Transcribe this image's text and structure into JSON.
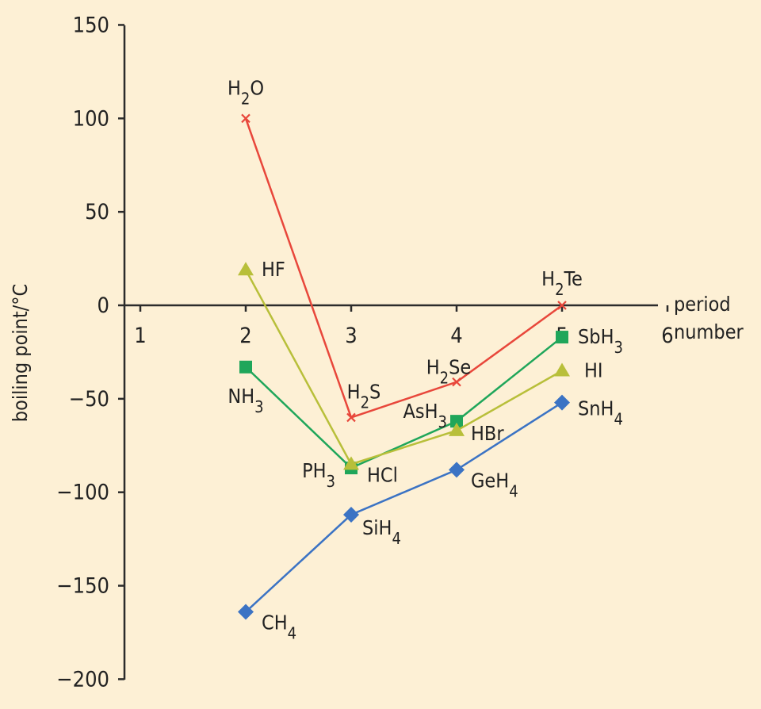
{
  "chart_data": {
    "type": "line",
    "xlabel": [
      "period",
      "number"
    ],
    "ylabel": "boiling point/°C",
    "xlim": [
      1,
      6
    ],
    "ylim": [
      -200,
      150
    ],
    "x_ticks": [
      "1",
      "2",
      "3",
      "4",
      "5",
      "6"
    ],
    "y_ticks": [
      "150",
      "100",
      "50",
      "0",
      "−50",
      "−100",
      "−150",
      "−200"
    ],
    "grid": false,
    "series": [
      {
        "key": "group16",
        "color": "#e8473b",
        "marker": "cross",
        "x": [
          2,
          3,
          4,
          5
        ],
        "y": [
          100,
          -60,
          -41,
          0
        ],
        "labels": [
          "H2O",
          "H2S",
          "H2Se",
          "H2Te"
        ]
      },
      {
        "key": "group15",
        "color": "#1fa65a",
        "marker": "square",
        "x": [
          2,
          3,
          4,
          5
        ],
        "y": [
          -33,
          -87,
          -62,
          -17
        ],
        "labels": [
          "NH3",
          "PH3",
          "AsH3",
          "SbH3"
        ]
      },
      {
        "key": "group17",
        "color": "#b8bf3a",
        "marker": "triangle",
        "x": [
          2,
          3,
          4,
          5
        ],
        "y": [
          19,
          -85,
          -67,
          -35
        ],
        "labels": [
          "HF",
          "HCl",
          "HBr",
          "HI"
        ]
      },
      {
        "key": "group14",
        "color": "#3b73c4",
        "marker": "diamond",
        "x": [
          2,
          3,
          4,
          5
        ],
        "y": [
          -164,
          -112,
          -88,
          -52
        ],
        "labels": [
          "CH4",
          "SiH4",
          "GeH4",
          "SnH4"
        ]
      }
    ]
  }
}
